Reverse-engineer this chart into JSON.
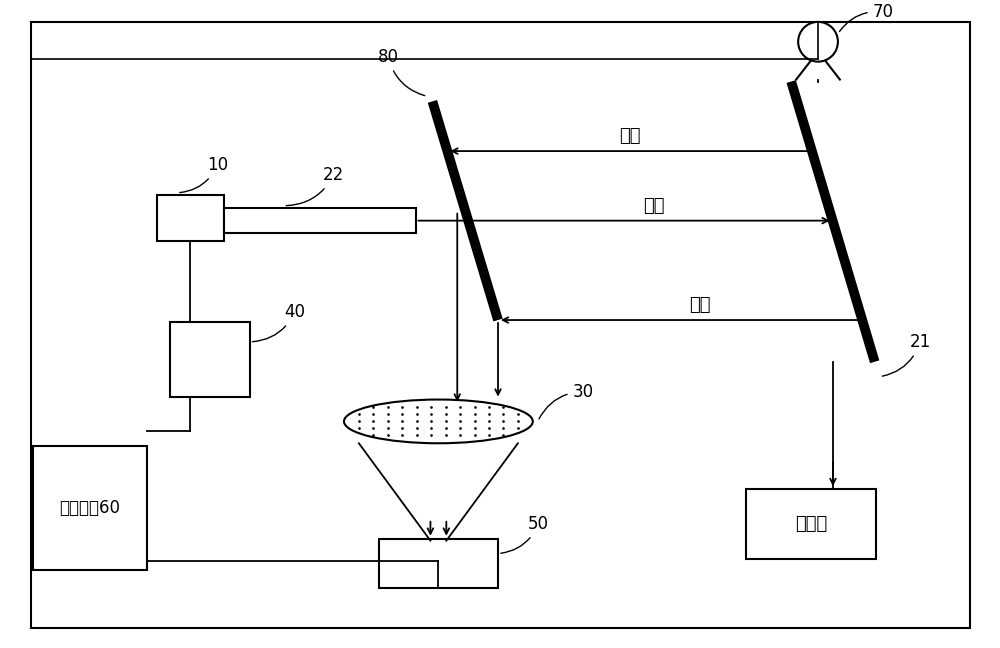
{
  "bg_color": "#ffffff",
  "label_10": "10",
  "label_22": "22",
  "label_21": "21",
  "label_30": "30",
  "label_40": "40",
  "label_50": "50",
  "label_60": "控制模块60",
  "label_70": "70",
  "label_80": "80",
  "label_laser": "激光",
  "label_return1": "回波",
  "label_return2": "回波",
  "label_target": "目标物",
  "fontsize_label": 13,
  "fontsize_number": 12,
  "fontsize_60": 12
}
